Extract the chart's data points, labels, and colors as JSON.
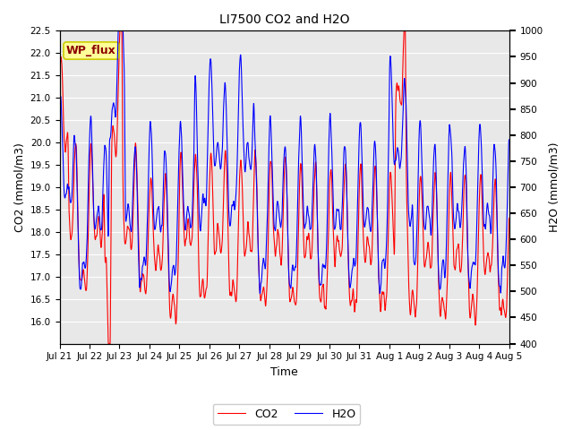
{
  "title": "LI7500 CO2 and H2O",
  "xlabel": "Time",
  "ylabel_left": "CO2 (mmol/m3)",
  "ylabel_right": "H2O (mmol/m3)",
  "ylim_left": [
    15.5,
    22.5
  ],
  "ylim_right": [
    400,
    1000
  ],
  "yticks_left": [
    16.0,
    16.5,
    17.0,
    17.5,
    18.0,
    18.5,
    19.0,
    19.5,
    20.0,
    20.5,
    21.0,
    21.5,
    22.0,
    22.5
  ],
  "yticks_right": [
    400,
    450,
    500,
    550,
    600,
    650,
    700,
    750,
    800,
    850,
    900,
    950,
    1000
  ],
  "xtick_labels": [
    "Jul 21",
    "Jul 22",
    "Jul 23",
    "Jul 24",
    "Jul 25",
    "Jul 26",
    "Jul 27",
    "Jul 28",
    "Jul 29",
    "Jul 30",
    "Jul 31",
    "Aug 1",
    "Aug 2",
    "Aug 3",
    "Aug 4",
    "Aug 5"
  ],
  "annotation_text": "WP_flux",
  "annotation_color": "#8B0000",
  "annotation_bg": "#FFFF99",
  "annotation_edge": "#CCCC00",
  "co2_color": "red",
  "h2o_color": "blue",
  "legend_co2": "CO2",
  "legend_h2o": "H2O",
  "background_color": "#E8E8E8",
  "grid_color": "white",
  "n_points": 3360,
  "figsize": [
    6.4,
    4.8
  ],
  "dpi": 100
}
